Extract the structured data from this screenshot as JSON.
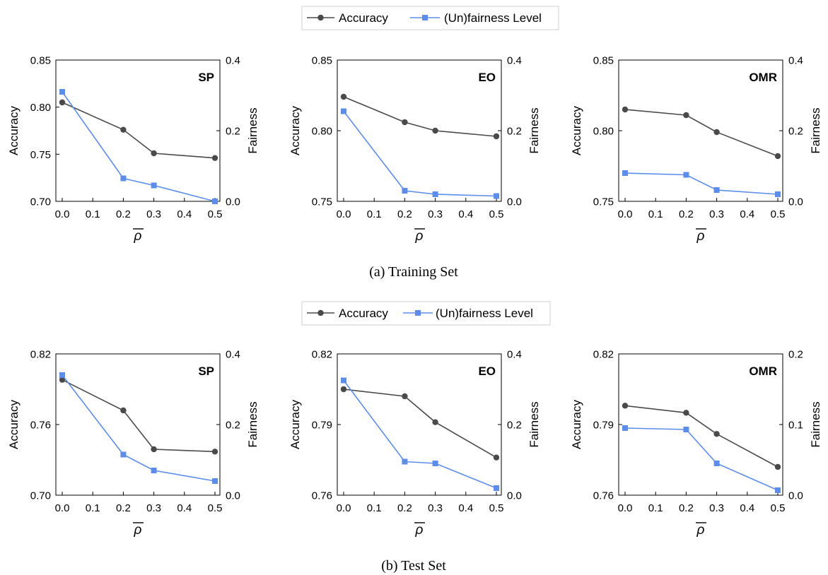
{
  "legend": {
    "accuracy": "Accuracy",
    "fairness": "(Un)fairness Level"
  },
  "captions": {
    "training": "(a)  Training Set",
    "test": "(b)  Test Set"
  },
  "axis_labels": {
    "left": "Accuracy",
    "right": "Fairness",
    "x": "ρ"
  },
  "colors": {
    "accuracy": "#4a4a4a",
    "fairness": "#5b8def"
  },
  "chart_data": [
    {
      "type": "line",
      "group": "Training Set",
      "title": "SP",
      "x": [
        0.0,
        0.2,
        0.3,
        0.5
      ],
      "xticks": [
        "0.0",
        "0.1",
        "0.2",
        "0.3",
        "0.4",
        "0.5"
      ],
      "xlim": [
        0,
        0.5
      ],
      "series": [
        {
          "name": "Accuracy",
          "axis": "left",
          "values": [
            0.805,
            0.776,
            0.751,
            0.746
          ]
        },
        {
          "name": "(Un)fairness Level",
          "axis": "right",
          "values": [
            0.31,
            0.065,
            0.045,
            0.0
          ]
        }
      ],
      "ylim_left": [
        0.7,
        0.85
      ],
      "yticks_left": [
        "0.70",
        "0.75",
        "0.80",
        "0.85"
      ],
      "ylim_right": [
        0,
        0.4
      ],
      "yticks_right": [
        "0.0",
        "0.2",
        "0.4"
      ]
    },
    {
      "type": "line",
      "group": "Training Set",
      "title": "EO",
      "x": [
        0.0,
        0.2,
        0.3,
        0.5
      ],
      "xticks": [
        "0.0",
        "0.1",
        "0.2",
        "0.3",
        "0.4",
        "0.5"
      ],
      "xlim": [
        0,
        0.5
      ],
      "series": [
        {
          "name": "Accuracy",
          "axis": "left",
          "values": [
            0.824,
            0.806,
            0.8,
            0.796
          ]
        },
        {
          "name": "(Un)fairness Level",
          "axis": "right",
          "values": [
            0.255,
            0.03,
            0.02,
            0.015
          ]
        }
      ],
      "ylim_left": [
        0.75,
        0.85
      ],
      "yticks_left": [
        "0.75",
        "0.80",
        "0.85"
      ],
      "ylim_right": [
        0,
        0.4
      ],
      "yticks_right": [
        "0.0",
        "0.2",
        "0.4"
      ]
    },
    {
      "type": "line",
      "group": "Training Set",
      "title": "OMR",
      "x": [
        0.0,
        0.2,
        0.3,
        0.5
      ],
      "xticks": [
        "0.0",
        "0.1",
        "0.2",
        "0.3",
        "0.4",
        "0.5"
      ],
      "xlim": [
        0,
        0.5
      ],
      "series": [
        {
          "name": "Accuracy",
          "axis": "left",
          "values": [
            0.815,
            0.811,
            0.799,
            0.782
          ]
        },
        {
          "name": "(Un)fairness Level",
          "axis": "right",
          "values": [
            0.08,
            0.075,
            0.032,
            0.02
          ]
        }
      ],
      "ylim_left": [
        0.75,
        0.85
      ],
      "yticks_left": [
        "0.75",
        "0.80",
        "0.85"
      ],
      "ylim_right": [
        0,
        0.4
      ],
      "yticks_right": [
        "0.0",
        "0.2",
        "0.4"
      ]
    },
    {
      "type": "line",
      "group": "Test Set",
      "title": "SP",
      "x": [
        0.0,
        0.2,
        0.3,
        0.5
      ],
      "xticks": [
        "0.0",
        "0.1",
        "0.2",
        "0.3",
        "0.4",
        "0.5"
      ],
      "xlim": [
        0,
        0.5
      ],
      "series": [
        {
          "name": "Accuracy",
          "axis": "left",
          "values": [
            0.798,
            0.772,
            0.739,
            0.737
          ]
        },
        {
          "name": "(Un)fairness Level",
          "axis": "right",
          "values": [
            0.34,
            0.115,
            0.07,
            0.04
          ]
        }
      ],
      "ylim_left": [
        0.7,
        0.82
      ],
      "yticks_left": [
        "0.70",
        "0.76",
        "0.82"
      ],
      "ylim_right": [
        0,
        0.4
      ],
      "yticks_right": [
        "0.0",
        "0.2",
        "0.4"
      ]
    },
    {
      "type": "line",
      "group": "Test Set",
      "title": "EO",
      "x": [
        0.0,
        0.2,
        0.3,
        0.5
      ],
      "xticks": [
        "0.0",
        "0.1",
        "0.2",
        "0.3",
        "0.4",
        "0.5"
      ],
      "xlim": [
        0,
        0.5
      ],
      "series": [
        {
          "name": "Accuracy",
          "axis": "left",
          "values": [
            0.805,
            0.802,
            0.791,
            0.776
          ]
        },
        {
          "name": "(Un)fairness Level",
          "axis": "right",
          "values": [
            0.325,
            0.095,
            0.09,
            0.02
          ]
        }
      ],
      "ylim_left": [
        0.76,
        0.82
      ],
      "yticks_left": [
        "0.76",
        "0.79",
        "0.82"
      ],
      "ylim_right": [
        0,
        0.4
      ],
      "yticks_right": [
        "0.0",
        "0.2",
        "0.4"
      ]
    },
    {
      "type": "line",
      "group": "Test Set",
      "title": "OMR",
      "x": [
        0.0,
        0.2,
        0.3,
        0.5
      ],
      "xticks": [
        "0.0",
        "0.1",
        "0.2",
        "0.3",
        "0.4",
        "0.5"
      ],
      "xlim": [
        0,
        0.5
      ],
      "series": [
        {
          "name": "Accuracy",
          "axis": "left",
          "values": [
            0.798,
            0.795,
            0.786,
            0.772
          ]
        },
        {
          "name": "(Un)fairness Level",
          "axis": "right",
          "values": [
            0.095,
            0.093,
            0.045,
            0.007
          ]
        }
      ],
      "ylim_left": [
        0.76,
        0.82
      ],
      "yticks_left": [
        "0.76",
        "0.79",
        "0.82"
      ],
      "ylim_right": [
        0,
        0.2
      ],
      "yticks_right": [
        "0.0",
        "0.1",
        "0.2"
      ]
    }
  ]
}
